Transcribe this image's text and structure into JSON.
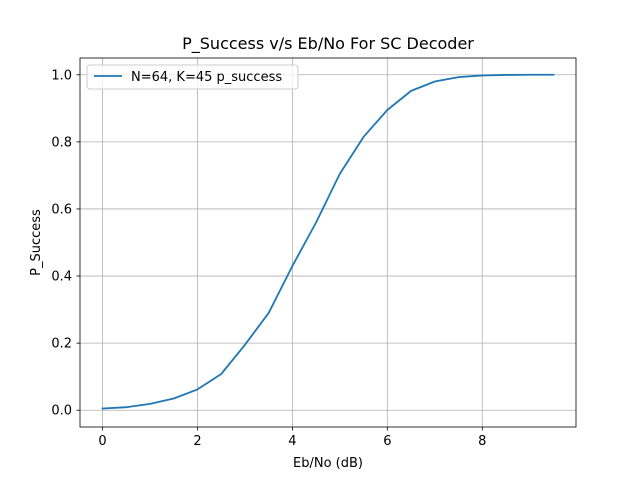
{
  "chart_data": {
    "type": "line",
    "title": "P_Success v/s Eb/No For SC Decoder",
    "xlabel": "Eb/No (dB)",
    "ylabel": "P_Success",
    "xlim": [
      -0.475,
      9.975
    ],
    "ylim": [
      -0.05,
      1.05
    ],
    "xticks": [
      0,
      2,
      4,
      6,
      8
    ],
    "yticks": [
      0.0,
      0.2,
      0.4,
      0.6,
      0.8,
      1.0
    ],
    "xtick_labels": [
      "0",
      "2",
      "4",
      "6",
      "8"
    ],
    "ytick_labels": [
      "0.0",
      "0.2",
      "0.4",
      "0.6",
      "0.8",
      "1.0"
    ],
    "grid": true,
    "legend_position": "upper-left",
    "series": [
      {
        "name": "N=64, K=45 p_success",
        "color": "#1f77b4",
        "x": [
          0,
          0.5,
          1.0,
          1.5,
          2.0,
          2.5,
          3.0,
          3.5,
          4.0,
          4.5,
          5.0,
          5.5,
          6.0,
          6.5,
          7.0,
          7.5,
          8.0,
          8.5,
          9.0,
          9.5
        ],
        "y": [
          0.005,
          0.009,
          0.019,
          0.035,
          0.062,
          0.108,
          0.195,
          0.29,
          0.43,
          0.56,
          0.705,
          0.815,
          0.895,
          0.952,
          0.98,
          0.993,
          0.998,
          0.9995,
          1.0,
          1.0
        ]
      }
    ]
  }
}
